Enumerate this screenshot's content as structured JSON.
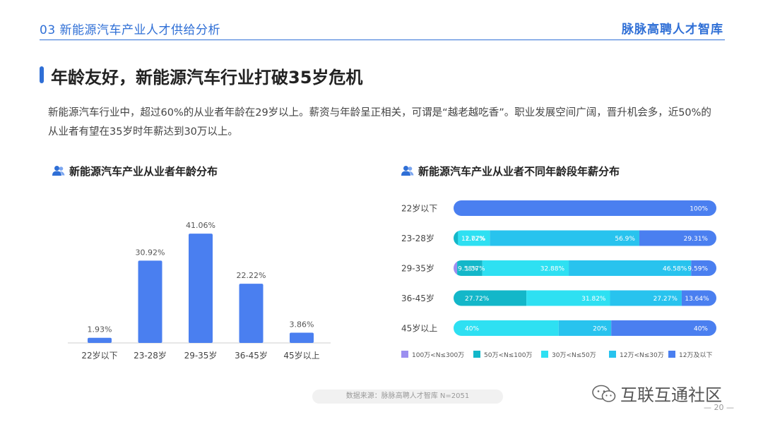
{
  "header": {
    "section": "03 新能源汽车产业人才供给分析",
    "brand": "脉脉高聘人才智库"
  },
  "headline": "年龄友好，新能源汽车行业打破35岁危机",
  "lead": "新能源汽车行业中，超过60%的从业者年龄在29岁以上。薪资与年龄呈正相关，可谓是“越老越吃香”。职业发展空间广阔，晋升机会多，近50%的从业者有望在35岁时年薪达到30万以上。",
  "icons": {
    "subtitle": "people-icon",
    "watermark": "wechat-icon"
  },
  "colors": {
    "accent": "#2f6fd6",
    "bar": "#4a7ff0",
    "seg_100_300": "#9c8ff0",
    "seg_50_100": "#13b7c9",
    "seg_30_50": "#2ee0f2",
    "seg_12_30": "#28c3ee",
    "seg_under_12": "#4a7ff0"
  },
  "chart_data": [
    {
      "type": "bar",
      "title": "新能源汽车产业从业者年龄分布",
      "categories": [
        "22岁以下",
        "23-28岁",
        "29-35岁",
        "36-45岁",
        "45岁以上"
      ],
      "values": [
        1.93,
        30.92,
        41.06,
        22.22,
        3.86
      ],
      "value_labels": [
        "1.93%",
        "30.92%",
        "41.06%",
        "22.22%",
        "3.86%"
      ],
      "ylim": [
        0,
        45
      ]
    },
    {
      "type": "bar",
      "orientation": "horizontal",
      "stacked": true,
      "percent": true,
      "title": "新能源汽车产业从业者不同年龄段年薪分布",
      "categories": [
        "22岁以下",
        "23-28岁",
        "29-35岁",
        "36-45岁",
        "45岁以上"
      ],
      "legend_position": "bottom",
      "series": [
        {
          "name": "100万<N≤300万",
          "color": "#9c8ff0",
          "values": [
            0,
            0,
            1.37,
            0,
            0
          ],
          "labels": [
            "",
            "",
            "1.37%",
            "",
            ""
          ]
        },
        {
          "name": "50万<N≤100万",
          "color": "#13b7c9",
          "values": [
            0,
            1.72,
            9.58,
            27.72,
            0
          ],
          "labels": [
            "",
            "1.72%",
            "9.58%",
            "27.72%",
            ""
          ]
        },
        {
          "name": "30万<N≤50万",
          "color": "#2ee0f2",
          "values": [
            0,
            12.07,
            32.88,
            31.82,
            40
          ],
          "labels": [
            "",
            "12.07%",
            "32.88%",
            "31.82%",
            "40%"
          ]
        },
        {
          "name": "12万<N≤30万",
          "color": "#28c3ee",
          "values": [
            0,
            56.9,
            46.58,
            27.27,
            20
          ],
          "labels": [
            "",
            "56.9%",
            "46.58%",
            "27.27%",
            "20%"
          ]
        },
        {
          "name": "12万及以下",
          "color": "#4a7ff0",
          "values": [
            100,
            29.31,
            9.59,
            13.64,
            40
          ],
          "labels": [
            "100%",
            "29.31%",
            "9.59%",
            "13.64%",
            "40%"
          ]
        }
      ]
    }
  ],
  "footer": {
    "source": "数据来源：脉脉高聘人才智库    N=2051",
    "watermark": "互联互通社区",
    "page": "— 20 —"
  }
}
